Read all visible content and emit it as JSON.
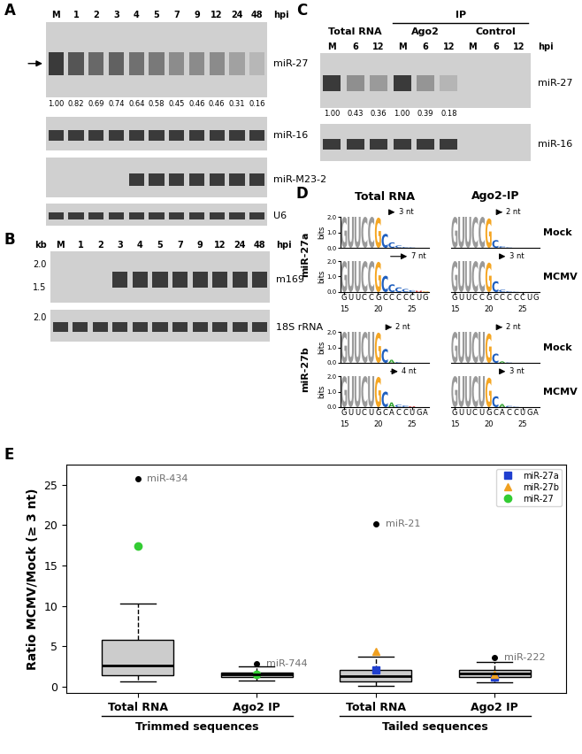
{
  "panels": {
    "A": {
      "label": "A",
      "lanes": [
        "M",
        "1",
        "2",
        "3",
        "4",
        "5",
        "7",
        "9",
        "12",
        "24",
        "48"
      ],
      "lane_unit": "hpi",
      "rows": [
        {
          "name": "miR-27",
          "values": [
            1.0,
            0.82,
            0.69,
            0.74,
            0.64,
            0.58,
            0.45,
            0.46,
            0.46,
            0.31,
            0.16
          ],
          "value_labels": [
            "1.00",
            "0.82",
            "0.69",
            "0.74",
            "0.64",
            "0.58",
            "0.45",
            "0.46",
            "0.46",
            "0.31",
            "0.16"
          ]
        },
        {
          "name": "miR-16"
        },
        {
          "name": "miR-M23-2",
          "signal": [
            false,
            false,
            false,
            false,
            true,
            true,
            true,
            true,
            true,
            true,
            true
          ]
        },
        {
          "name": "U6"
        }
      ]
    },
    "B": {
      "label": "B",
      "lanes": [
        "M",
        "1",
        "2",
        "3",
        "4",
        "5",
        "7",
        "9",
        "12",
        "24",
        "48"
      ],
      "lane_unit": "hpi",
      "size_unit": "kb",
      "rows": [
        {
          "name": "m169",
          "markers": [
            "2.0",
            "1.5"
          ],
          "signal": [
            false,
            false,
            false,
            true,
            true,
            true,
            true,
            true,
            true,
            true,
            true
          ]
        },
        {
          "name": "18S rRNA",
          "markers": [
            "2.0"
          ]
        }
      ]
    },
    "C": {
      "label": "C",
      "lane_unit": "hpi",
      "groups": [
        {
          "name": "Total RNA",
          "lanes": [
            "M",
            "6",
            "12"
          ]
        },
        {
          "name": "IP",
          "subgroups": [
            {
              "name": "Ago2",
              "lanes": [
                "M",
                "6",
                "12"
              ]
            },
            {
              "name": "Control",
              "lanes": [
                "M",
                "6",
                "12"
              ]
            }
          ]
        }
      ],
      "rows": [
        {
          "name": "miR-27",
          "values": [
            1.0,
            0.43,
            0.36,
            1.0,
            0.39,
            0.18,
            null,
            null,
            null
          ],
          "value_labels": [
            "1.00",
            "0.43",
            "0.36",
            "1.00",
            "0.39",
            "0.18",
            null,
            null,
            null
          ],
          "signal": [
            true,
            true,
            true,
            true,
            true,
            true,
            false,
            false,
            false
          ]
        },
        {
          "name": "miR-16",
          "signal": [
            true,
            true,
            true,
            true,
            true,
            true,
            false,
            false,
            false
          ]
        }
      ]
    },
    "D": {
      "label": "D",
      "columns": [
        "Total RNA",
        "Ago2-IP"
      ],
      "conditions": [
        "Mock",
        "MCMV"
      ],
      "ylabel": "bits",
      "ylim": [
        0,
        2
      ],
      "yticks": [
        {
          "value": 0,
          "label": "0.0"
        },
        {
          "value": 1,
          "label": "1.0"
        },
        {
          "value": 2,
          "label": "2.0"
        }
      ],
      "xlim": [
        14.5,
        27.5
      ],
      "xticks": [
        15,
        20,
        25
      ],
      "start": 15,
      "mirnas": [
        {
          "name": "miR-27a",
          "sequence": "GUUCCGCCCCCUG",
          "logos": [
            [
              {
                "tail_nt": 3,
                "tail_label": "3 nt",
                "heights": [
                  2,
                  2,
                  2,
                  2,
                  2,
                  1.95,
                  0.9,
                  0.35,
                  0.15,
                  0.05,
                  0.03,
                  0,
                  0
                ]
              },
              {
                "tail_nt": 2,
                "tail_label": "2 nt",
                "heights": [
                  2,
                  2,
                  2,
                  2,
                  2,
                  1.9,
                  0.5,
                  0.1,
                  0.03,
                  0,
                  0,
                  0,
                  0
                ]
              }
            ],
            [
              {
                "tail_nt": 7,
                "tail_label": "7 nt",
                "heights": [
                  2,
                  2,
                  2,
                  2,
                  2,
                  1.95,
                  1.05,
                  0.5,
                  0.3,
                  0.2,
                  0.12,
                  0.08,
                  0.05
                ]
              },
              {
                "tail_nt": 3,
                "tail_label": "3 nt",
                "heights": [
                  2,
                  2,
                  2,
                  2,
                  2,
                  1.9,
                  0.7,
                  0.15,
                  0.05,
                  0.02,
                  0,
                  0,
                  0
                ]
              }
            ]
          ]
        },
        {
          "name": "miR-27b",
          "sequence": "GUUCUGCACCUGA",
          "logos": [
            [
              {
                "tail_nt": 2,
                "tail_label": "2 nt",
                "heights": [
                  2,
                  2,
                  2,
                  2,
                  2,
                  1.95,
                  0.9,
                  0.2,
                  0.05,
                  0,
                  0,
                  0,
                  0
                ]
              },
              {
                "tail_nt": 2,
                "tail_label": "2 nt",
                "heights": [
                  2,
                  2,
                  2,
                  2,
                  2,
                  1.9,
                  0.6,
                  0.1,
                  0.03,
                  0,
                  0,
                  0,
                  0
                ]
              }
            ],
            [
              {
                "tail_nt": 4,
                "tail_label": "4 nt",
                "heights": [
                  2,
                  2,
                  2,
                  2,
                  2,
                  1.95,
                  1.0,
                  0.3,
                  0.15,
                  0.1,
                  0.05,
                  0,
                  0
                ]
              },
              {
                "tail_nt": 3,
                "tail_label": "3 nt",
                "heights": [
                  2,
                  2,
                  2,
                  2,
                  2,
                  1.9,
                  0.7,
                  0.2,
                  0.08,
                  0.03,
                  0,
                  0,
                  0
                ]
              }
            ]
          ]
        }
      ]
    }
  },
  "chart_data": {
    "type": "box",
    "label": "E",
    "ylabel": "Ratio MCMV/Mock (≥ 3 nt)",
    "categories": [
      "Total RNA",
      "Ago2 IP",
      "Total RNA",
      "Ago2 IP"
    ],
    "category_groups": [
      "Trimmed sequences",
      "Trimmed sequences",
      "Tailed sequences",
      "Tailed sequences"
    ],
    "stats": [
      {
        "whislo": 0.6,
        "q1": 1.4,
        "med": 2.6,
        "q3": 5.8,
        "whishi": 10.3
      },
      {
        "whislo": 0.7,
        "q1": 1.2,
        "med": 1.45,
        "q3": 1.75,
        "whishi": 2.5
      },
      {
        "whislo": 0.1,
        "q1": 0.6,
        "med": 1.3,
        "q3": 2.1,
        "whishi": 3.7
      },
      {
        "whislo": 0.5,
        "q1": 1.15,
        "med": 1.6,
        "q3": 2.1,
        "whishi": 3.0
      }
    ],
    "outliers": [
      [
        {
          "name": "miR-434",
          "value": 25.7
        }
      ],
      [
        {
          "name": "miR-744",
          "value": 2.8
        }
      ],
      [
        {
          "name": "miR-21",
          "value": 20.2
        }
      ],
      [
        {
          "name": "miR-222",
          "value": 3.6
        }
      ]
    ],
    "series": [
      {
        "name": "miR-27a",
        "color": "#1f3fcf",
        "marker": "square",
        "values": [
          null,
          null,
          2.0,
          1.2
        ]
      },
      {
        "name": "miR-27b",
        "color": "#f0a020",
        "marker": "triangle",
        "values": [
          null,
          null,
          4.4,
          1.5
        ]
      },
      {
        "name": "miR-27",
        "color": "#33cc33",
        "marker": "circle",
        "values": [
          17.4,
          1.55,
          null,
          null
        ]
      }
    ],
    "legend": "upper right",
    "ylim": [
      -0.8,
      27.5
    ],
    "yticks": [
      0,
      5,
      10,
      15,
      20,
      25
    ]
  }
}
